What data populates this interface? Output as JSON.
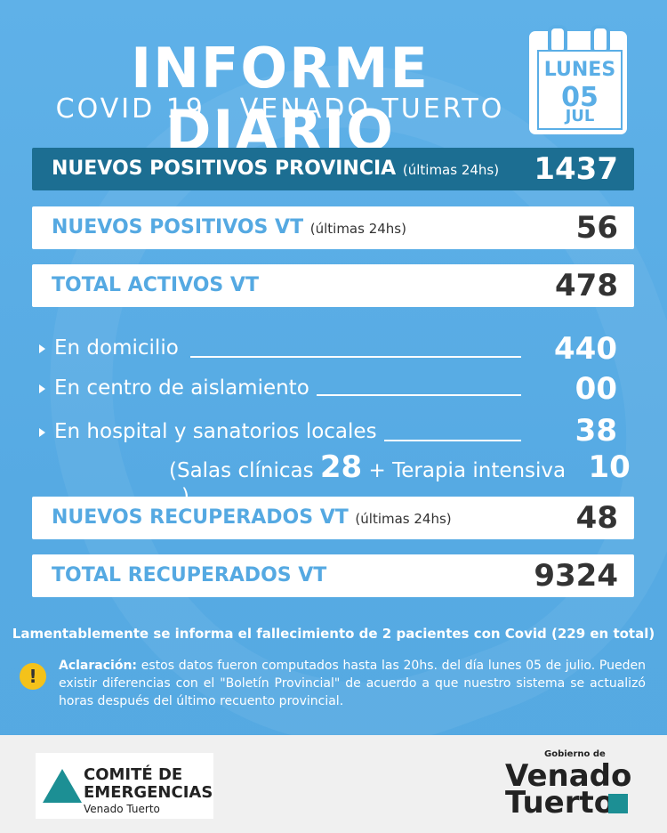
{
  "header": {
    "title": "INFORME DIARIO",
    "subtitle": "COVID 19 - VENADO TUERTO",
    "calendar": {
      "day": "LUNES",
      "number": "05",
      "month": "JUL"
    }
  },
  "stats": {
    "provincia": {
      "label": "NUEVOS POSITIVOS PROVINCIA",
      "note": "(últimas 24hs)",
      "value": "1437"
    },
    "nuevos_vt": {
      "label": "NUEVOS POSITIVOS VT",
      "note": "(últimas 24hs)",
      "value": "56"
    },
    "activos": {
      "label": "TOTAL ACTIVOS VT",
      "value": "478"
    },
    "domicilio": {
      "label": "En domicilio",
      "value": "440"
    },
    "aislamiento": {
      "label": "En centro de aislamiento",
      "value": "00"
    },
    "hospital": {
      "label": "En hospital y sanatorios locales",
      "value": "38"
    },
    "salas": {
      "open": "(Salas clínicas",
      "salas_value": "28",
      "plus": "+",
      "terapia_label": "Terapia intensiva",
      "terapia_value": "10",
      "close": ")"
    },
    "recuperados_nuevos": {
      "label": "NUEVOS RECUPERADOS VT",
      "note": "(últimas 24hs)",
      "value": "48"
    },
    "recuperados_total": {
      "label": "TOTAL RECUPERADOS VT",
      "value": "9324"
    }
  },
  "death_text": "Lamentablemente se informa el fallecimiento de 2 pacientes con Covid (229 en total)",
  "note": {
    "bold": "Aclaración:",
    "text": " estos datos fueron computados hasta las 20hs. del día lunes 05 de julio. Pueden existir diferencias con el \"Boletín Provincial\" de acuerdo a que nuestro sistema se actualizó horas después del último recuento provincial."
  },
  "footer": {
    "comite": {
      "line1": "COMITÉ DE",
      "line2": "EMERGENCIAS",
      "line3": "Venado Tuerto"
    },
    "gobierno": {
      "small": "Gobierno de",
      "line1": "Venado",
      "line2": "Tuerto"
    }
  },
  "colors": {
    "background": "#5aaee6",
    "dark_bar": "#1c6e92",
    "accent": "#55a9e2",
    "warning": "#f4c21a"
  }
}
